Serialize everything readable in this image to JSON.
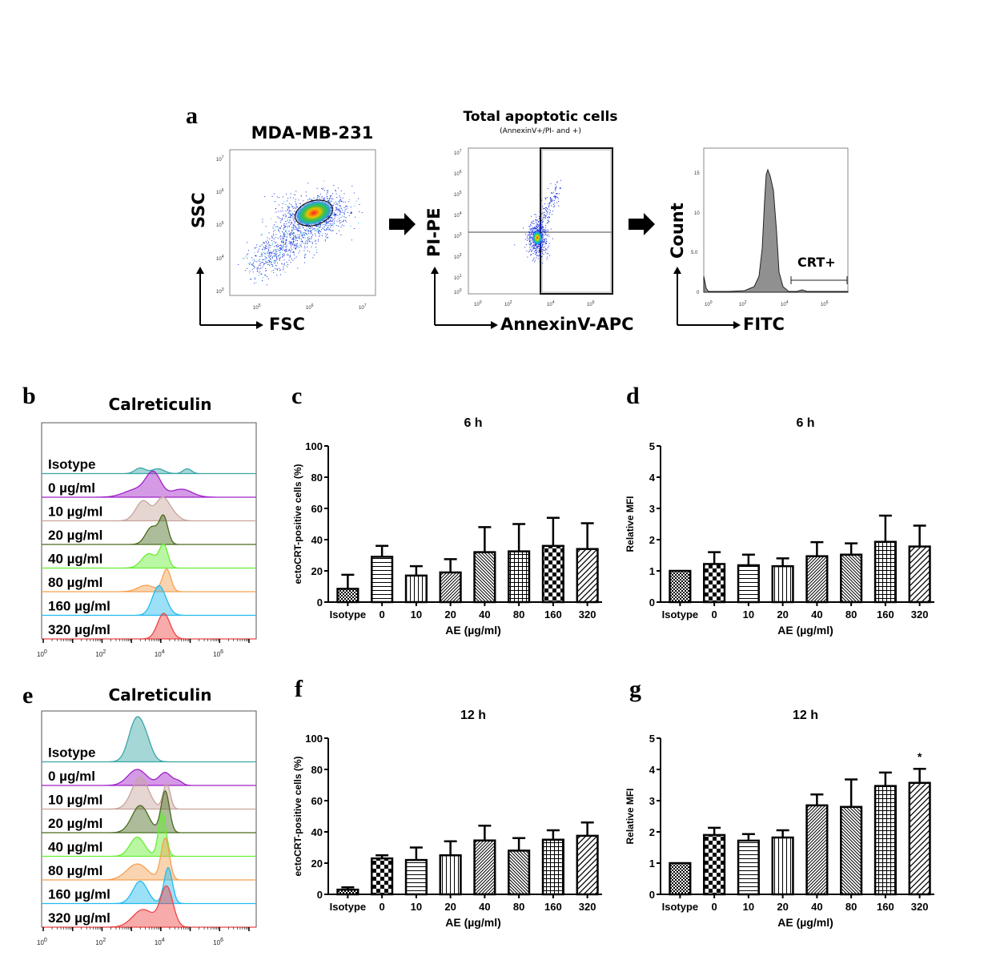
{
  "figure": {
    "panel_letters": [
      "a",
      "b",
      "c",
      "d",
      "e",
      "f",
      "g"
    ],
    "arrow_icon": "right-arrow-icon"
  },
  "panel_a": {
    "scatter1": {
      "title": "MDA-MB-231",
      "xlabel": "FSC",
      "ylabel": "SSC",
      "xticks": [
        "10^5",
        "10^6",
        "10^7"
      ],
      "yticks": [
        "10^3",
        "10^4",
        "10^5",
        "10^6",
        "10^7"
      ],
      "gate": "ellipse"
    },
    "scatter2": {
      "title": "Total apoptotic cells",
      "subtitle": "(AnnexinV+/PI- and +)",
      "xlabel": "AnnexinV-APC",
      "ylabel": "PI-PE",
      "xticks": [
        "10^0",
        "10^2",
        "10^4",
        "10^6"
      ],
      "yticks": [
        "10^0",
        "10^1",
        "10^2",
        "10^3",
        "10^4",
        "10^5",
        "10^6",
        "10^7"
      ]
    },
    "histogram": {
      "xlabel": "FITC",
      "ylabel": "Count",
      "xticks": [
        "10^0",
        "10^2",
        "10^4",
        "10^6"
      ],
      "yticks": [
        "0",
        "5.0",
        "10",
        "15"
      ],
      "gate_label": "CRT+"
    }
  },
  "panel_b": {
    "title": "Calreticulin",
    "rows": [
      "Isotype",
      "0 µg/ml",
      "10 µg/ml",
      "20 µg/ml",
      "40 µg/ml",
      "80 µg/ml",
      "160 µg/ml",
      "320 µg/ml"
    ],
    "colors": [
      "#3aa6a6",
      "#a020c8",
      "#c8a49c",
      "#4a6b1e",
      "#66ee33",
      "#f5a050",
      "#22bbee",
      "#ee4444"
    ],
    "xticks": [
      "10^0",
      "10^2",
      "10^4",
      "10^6"
    ]
  },
  "panel_e": {
    "title": "Calreticulin",
    "rows": [
      "Isotype",
      "0 µg/ml",
      "10 µg/ml",
      "20 µg/ml",
      "40 µg/ml",
      "80 µg/ml",
      "160 µg/ml",
      "320 µg/ml"
    ],
    "colors": [
      "#3aa6a6",
      "#a020c8",
      "#c8a49c",
      "#4a6b1e",
      "#66ee33",
      "#f5a050",
      "#22bbee",
      "#ee4444"
    ],
    "xticks": [
      "10^0",
      "10^2",
      "10^4",
      "10^6"
    ]
  },
  "chart_data": [
    {
      "id": "c",
      "type": "bar",
      "title": "6 h",
      "xlabel": "AE (µg/ml)",
      "ylabel": "ectoCRT-positive cells (%)",
      "categories": [
        "Isotype",
        "0",
        "10",
        "20",
        "40",
        "80",
        "160",
        "320"
      ],
      "values": [
        8.5,
        29,
        17,
        19,
        32,
        32.5,
        36,
        34
      ],
      "error_upper": [
        17.5,
        36,
        23,
        27.5,
        48,
        50,
        54,
        50.5
      ],
      "patterns": [
        "fine-checker",
        "horizontal",
        "vertical",
        "diag-up",
        "diag-down",
        "grid",
        "checker",
        "diag-up-wide"
      ],
      "ylim": [
        0,
        100
      ],
      "yticks": [
        0,
        20,
        40,
        60,
        80,
        100
      ],
      "annotations": []
    },
    {
      "id": "d",
      "type": "bar",
      "title": "6 h",
      "xlabel": "AE (µg/ml)",
      "ylabel": "Relative MFI",
      "categories": [
        "Isotype",
        "0",
        "10",
        "20",
        "40",
        "80",
        "160",
        "320"
      ],
      "values": [
        1.0,
        1.22,
        1.18,
        1.15,
        1.47,
        1.52,
        1.93,
        1.78
      ],
      "error_upper": [
        1.0,
        1.6,
        1.52,
        1.4,
        1.92,
        1.88,
        2.77,
        2.45
      ],
      "patterns": [
        "fine-checker",
        "checker",
        "horizontal",
        "vertical",
        "diag-up",
        "diag-down",
        "grid",
        "diag-up-wide"
      ],
      "ylim": [
        0,
        5
      ],
      "yticks": [
        0,
        1,
        2,
        3,
        4,
        5
      ],
      "annotations": []
    },
    {
      "id": "f",
      "type": "bar",
      "title": "12 h",
      "xlabel": "AE (µg/ml)",
      "ylabel": "ectoCRT-positive cells (%)",
      "categories": [
        "Isotype",
        "0",
        "10",
        "20",
        "40",
        "80",
        "160",
        "320"
      ],
      "values": [
        3,
        23,
        22,
        25,
        34.5,
        28,
        35,
        37.5
      ],
      "error_upper": [
        4.5,
        25,
        30,
        34,
        44,
        36,
        41,
        46
      ],
      "patterns": [
        "fine-checker",
        "checker",
        "horizontal",
        "vertical",
        "diag-up",
        "diag-down",
        "grid",
        "diag-up-wide"
      ],
      "ylim": [
        0,
        100
      ],
      "yticks": [
        0,
        20,
        40,
        60,
        80,
        100
      ],
      "annotations": []
    },
    {
      "id": "g",
      "type": "bar",
      "title": "12 h",
      "xlabel": "AE (µg/ml)",
      "ylabel": "Relative MFI",
      "categories": [
        "Isotype",
        "0",
        "10",
        "20",
        "40",
        "80",
        "160",
        "320"
      ],
      "values": [
        1.0,
        1.9,
        1.72,
        1.82,
        2.85,
        2.8,
        3.47,
        3.57
      ],
      "error_upper": [
        1.0,
        2.13,
        1.93,
        2.05,
        3.2,
        3.68,
        3.9,
        4.02
      ],
      "patterns": [
        "fine-checker",
        "checker",
        "horizontal",
        "vertical",
        "diag-up",
        "diag-down",
        "grid",
        "diag-up-wide"
      ],
      "ylim": [
        0,
        5
      ],
      "yticks": [
        0,
        1,
        2,
        3,
        4,
        5
      ],
      "annotations": [
        {
          "category": "320",
          "text": "*"
        }
      ]
    }
  ]
}
